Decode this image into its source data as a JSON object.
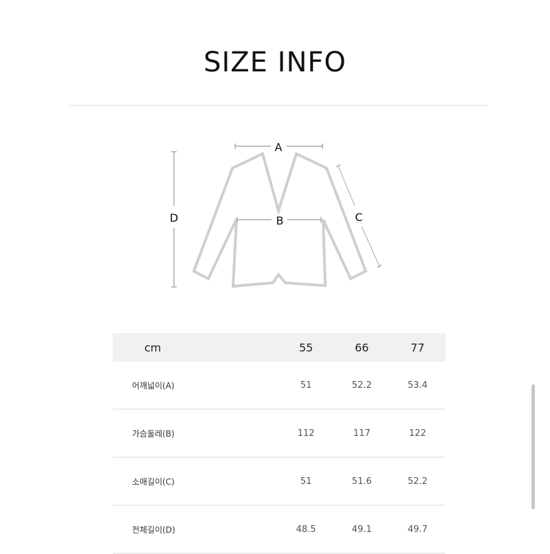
{
  "title": "SIZE INFO",
  "diagram": {
    "labels": {
      "a": "A",
      "b": "B",
      "c": "C",
      "d": "D"
    }
  },
  "table": {
    "headers": [
      "cm",
      "55",
      "66",
      "77"
    ],
    "rows": [
      {
        "label": "어깨넓이(A)",
        "values": [
          "51",
          "52.2",
          "53.4"
        ]
      },
      {
        "label": "가슴둘레(B)",
        "values": [
          "112",
          "117",
          "122"
        ]
      },
      {
        "label": "소매길이(C)",
        "values": [
          "51",
          "51.6",
          "52.2"
        ]
      },
      {
        "label": "전체길이(D)",
        "values": [
          "48.5",
          "49.1",
          "49.7"
        ]
      }
    ]
  }
}
